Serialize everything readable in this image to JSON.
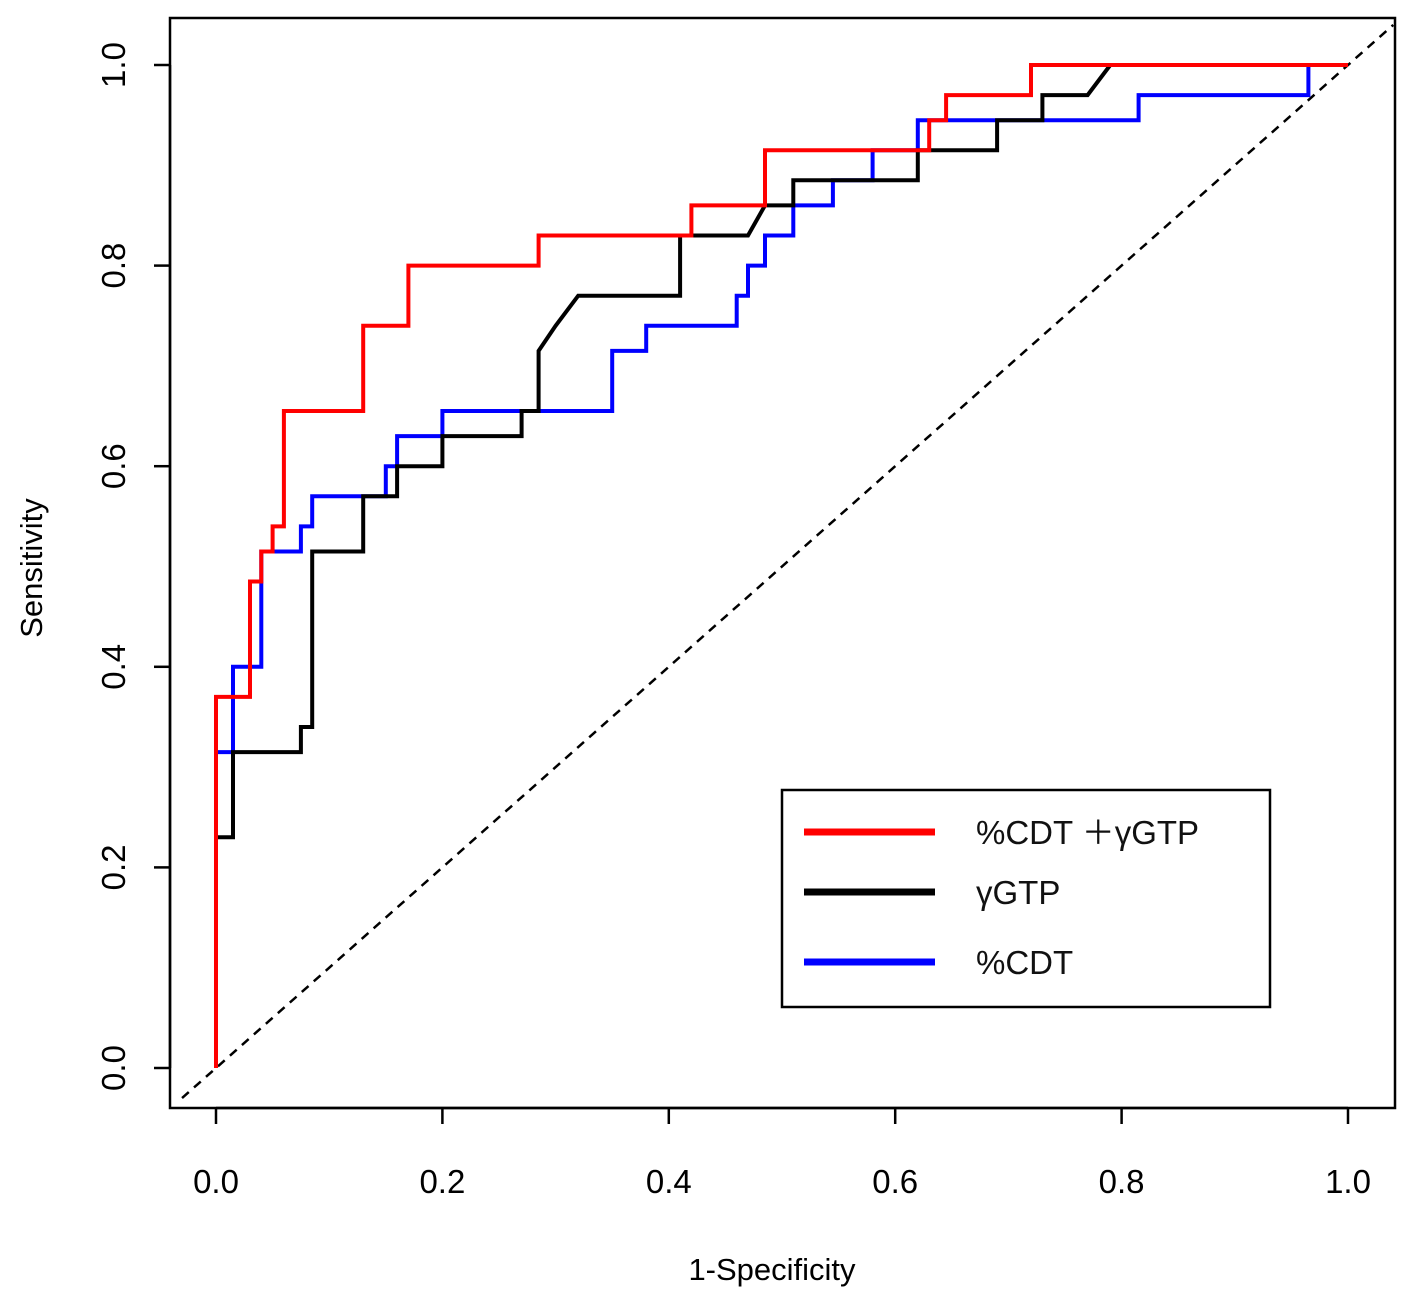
{
  "chart_data": {
    "type": "line",
    "title": "",
    "xlabel": "1-Specificity",
    "ylabel": "Sensitivity",
    "xlim": [
      -0.03,
      1.04
    ],
    "ylim": [
      -0.04,
      1.04
    ],
    "xticks": [
      "0.0",
      "0.2",
      "0.4",
      "0.6",
      "0.8",
      "1.0"
    ],
    "yticks": [
      "0.0",
      "0.2",
      "0.4",
      "0.6",
      "0.8",
      "1.0"
    ],
    "grid": false,
    "legend_position": "bottom-right",
    "reference_line": {
      "name": "chance",
      "style": "dashed",
      "color": "#000000",
      "x": [
        -0.03,
        1.04
      ],
      "y": [
        -0.03,
        1.04
      ]
    },
    "series": [
      {
        "name": "%CDT ＋γGTP",
        "color": "#ff0000",
        "x": [
          0.0,
          0.0,
          0.0,
          0.03,
          0.03,
          0.04,
          0.04,
          0.05,
          0.05,
          0.06,
          0.06,
          0.13,
          0.13,
          0.17,
          0.17,
          0.285,
          0.285,
          0.42,
          0.42,
          0.485,
          0.485,
          0.63,
          0.63,
          0.645,
          0.645,
          0.72,
          0.72,
          1.0
        ],
        "y": [
          0.0,
          0.37,
          0.37,
          0.37,
          0.485,
          0.485,
          0.515,
          0.515,
          0.54,
          0.54,
          0.655,
          0.655,
          0.74,
          0.74,
          0.8,
          0.8,
          0.83,
          0.83,
          0.86,
          0.86,
          0.915,
          0.915,
          0.945,
          0.945,
          0.97,
          0.97,
          1.0,
          1.0
        ]
      },
      {
        "name": "γGTP",
        "color": "#000000",
        "x": [
          0.0,
          0.0,
          0.015,
          0.015,
          0.075,
          0.075,
          0.085,
          0.085,
          0.13,
          0.13,
          0.16,
          0.16,
          0.2,
          0.2,
          0.27,
          0.27,
          0.285,
          0.285,
          0.3,
          0.3,
          0.32,
          0.32,
          0.41,
          0.41,
          0.47,
          0.485,
          0.485,
          0.51,
          0.51,
          0.62,
          0.62,
          0.69,
          0.69,
          0.73,
          0.73,
          0.77,
          0.79,
          1.0
        ],
        "y": [
          0.0,
          0.23,
          0.23,
          0.315,
          0.315,
          0.34,
          0.34,
          0.515,
          0.515,
          0.57,
          0.57,
          0.6,
          0.6,
          0.63,
          0.63,
          0.655,
          0.655,
          0.715,
          0.74,
          0.74,
          0.77,
          0.77,
          0.77,
          0.83,
          0.83,
          0.86,
          0.86,
          0.86,
          0.885,
          0.885,
          0.915,
          0.915,
          0.945,
          0.945,
          0.97,
          0.97,
          1.0,
          1.0
        ]
      },
      {
        "name": "%CDT",
        "color": "#0000ff",
        "x": [
          0.0,
          0.0,
          0.015,
          0.015,
          0.04,
          0.04,
          0.075,
          0.075,
          0.085,
          0.085,
          0.15,
          0.15,
          0.16,
          0.16,
          0.2,
          0.2,
          0.35,
          0.35,
          0.38,
          0.38,
          0.46,
          0.46,
          0.47,
          0.47,
          0.485,
          0.485,
          0.51,
          0.51,
          0.545,
          0.545,
          0.58,
          0.58,
          0.62,
          0.62,
          0.815,
          0.815,
          0.965,
          0.965,
          1.0
        ],
        "y": [
          0.0,
          0.315,
          0.315,
          0.4,
          0.4,
          0.515,
          0.515,
          0.54,
          0.54,
          0.57,
          0.57,
          0.6,
          0.6,
          0.63,
          0.63,
          0.655,
          0.655,
          0.715,
          0.715,
          0.74,
          0.74,
          0.77,
          0.77,
          0.8,
          0.8,
          0.83,
          0.83,
          0.86,
          0.86,
          0.885,
          0.885,
          0.915,
          0.915,
          0.945,
          0.945,
          0.97,
          0.97,
          1.0,
          1.0
        ]
      }
    ]
  }
}
